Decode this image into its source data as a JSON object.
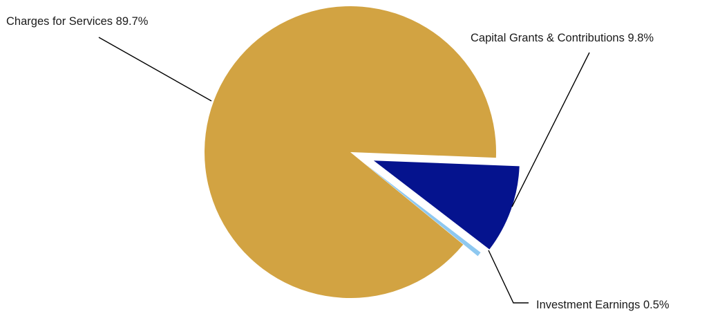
{
  "chart_data": {
    "type": "pie",
    "title": "",
    "legend": "none",
    "slices": [
      {
        "label": "Charges for Services",
        "value": 89.7,
        "display": "Charges for Services 89.7%",
        "color": "#D2A342"
      },
      {
        "label": "Capital Grants & Contributions",
        "value": 9.8,
        "display": "Capital Grants & Contributions 9.8%",
        "color": "#05138E"
      },
      {
        "label": "Investment Earnings",
        "value": 0.5,
        "display": "Investment Earnings 0.5%",
        "color": "#8EC8F0"
      }
    ]
  }
}
